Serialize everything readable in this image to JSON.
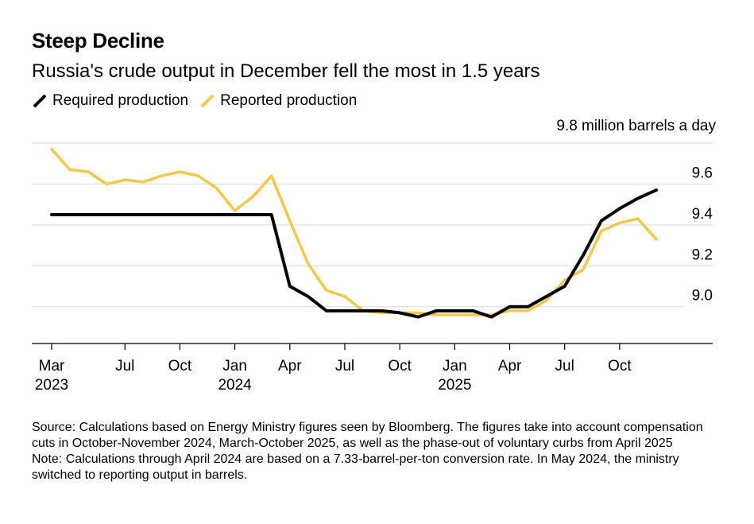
{
  "chart_data": {
    "type": "line",
    "title": "Steep Decline",
    "subtitle": "Russia's crude output in December fell the most in 1.5 years",
    "ylabel": "9.8 million barrels a day",
    "ylim": [
      8.82,
      9.8
    ],
    "yticks": [
      9.0,
      9.2,
      9.4,
      9.6
    ],
    "ytick_labels": [
      "9.0",
      "9.2",
      "9.4",
      "9.6"
    ],
    "x": [
      "2023-03",
      "2023-04",
      "2023-05",
      "2023-06",
      "2023-07",
      "2023-08",
      "2023-09",
      "2023-10",
      "2023-11",
      "2023-12",
      "2024-01",
      "2024-02",
      "2024-03",
      "2024-04",
      "2024-05",
      "2024-06",
      "2024-07",
      "2024-08",
      "2024-09",
      "2024-10",
      "2024-11",
      "2024-12",
      "2025-01",
      "2025-02",
      "2025-03",
      "2025-04",
      "2025-05",
      "2025-06",
      "2025-07",
      "2025-08",
      "2025-09",
      "2025-10",
      "2025-11",
      "2025-12"
    ],
    "xticks": [
      {
        "label": "Mar",
        "year": "2023",
        "index": 0
      },
      {
        "label": "Jul",
        "year": "",
        "index": 4
      },
      {
        "label": "Oct",
        "year": "",
        "index": 7
      },
      {
        "label": "Jan",
        "year": "2024",
        "index": 10
      },
      {
        "label": "Apr",
        "year": "",
        "index": 13
      },
      {
        "label": "Jul",
        "year": "",
        "index": 16
      },
      {
        "label": "Oct",
        "year": "",
        "index": 19
      },
      {
        "label": "Jan",
        "year": "2025",
        "index": 22
      },
      {
        "label": "Apr",
        "year": "",
        "index": 25
      },
      {
        "label": "Jul",
        "year": "",
        "index": 28
      },
      {
        "label": "Oct",
        "year": "",
        "index": 31
      }
    ],
    "series": [
      {
        "name": "Required production",
        "color": "#000000",
        "values": [
          9.45,
          9.45,
          9.45,
          9.45,
          9.45,
          9.45,
          9.45,
          9.45,
          9.45,
          9.45,
          9.45,
          9.45,
          9.45,
          9.1,
          9.05,
          8.98,
          8.98,
          8.98,
          8.98,
          8.97,
          8.95,
          8.98,
          8.98,
          8.98,
          8.95,
          9.0,
          9.0,
          9.05,
          9.1,
          9.25,
          9.42,
          9.48,
          9.53,
          9.57
        ]
      },
      {
        "name": "Reported production",
        "color": "#f2c94c",
        "values": [
          9.77,
          9.67,
          9.66,
          9.6,
          9.62,
          9.61,
          9.64,
          9.66,
          9.64,
          9.58,
          9.47,
          9.54,
          9.64,
          9.42,
          9.21,
          9.08,
          9.05,
          8.98,
          8.97,
          8.97,
          8.97,
          8.96,
          8.96,
          8.96,
          8.96,
          8.98,
          8.98,
          9.03,
          9.13,
          9.18,
          9.37,
          9.41,
          9.43,
          9.33
        ]
      }
    ]
  },
  "footnote": {
    "source": "Source: Calculations based on Energy Ministry figures seen by Bloomberg. The figures take into account compensation cuts in October-November 2024, March-October 2025, as well as the phase-out of voluntary curbs from April 2025",
    "note": "Note: Calculations through April 2024 are based on a 7.33-barrel-per-ton conversion rate. In May 2024, the ministry switched to reporting output in barrels."
  }
}
